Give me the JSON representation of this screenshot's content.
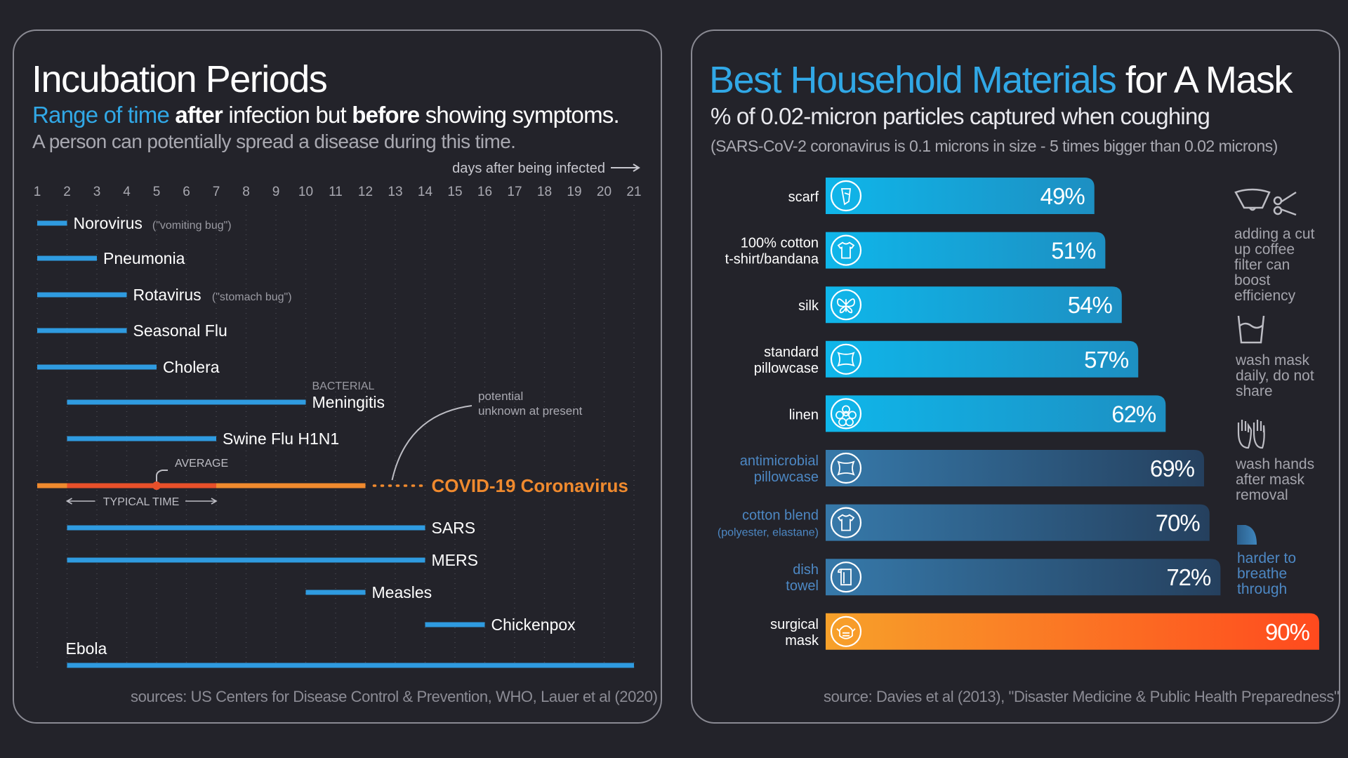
{
  "incubation": {
    "title": "Incubation Periods",
    "subtitle_blue": "Range of time",
    "subtitle_after": "after",
    "subtitle_mid": "infection but",
    "subtitle_before": "before",
    "subtitle_end": "showing symptoms.",
    "subtitle2": "A person can potentially spread a disease during this time.",
    "axis_label": "days after being infected",
    "source": "sources: US Centers for Disease Control & Prevention, WHO, Lauer et al (2020)",
    "annotations": {
      "bacterial": "BACTERIAL",
      "potential": "potential",
      "unknown": "unknown at present",
      "average": "AVERAGE",
      "typical": "TYPICAL TIME"
    },
    "colors": {
      "bar": "#2f9be0",
      "covid_dark": "#e8502a",
      "covid_light": "#f08a2e"
    }
  },
  "masks": {
    "title_blue": "Best Household Materials",
    "title_white": "for A Mask",
    "subtitle": "% of 0.02-micron particles captured when coughing",
    "note": "(SARS-CoV-2 coronavirus is 0.1 microns in size - 5 times bigger than 0.02 microns)",
    "source": "source: Davies et al (2013), \"Disaster Medicine & Public Health Preparedness\"",
    "tips": [
      {
        "icon": "coffee-filter-scissors-icon",
        "text": "adding a cut up coffee filter can boost efficiency"
      },
      {
        "icon": "washbasin-icon",
        "text": "wash mask daily, do not share"
      },
      {
        "icon": "hands-icon",
        "text": "wash hands after mask removal"
      },
      {
        "icon": "breathing-gradient-icon",
        "text": "harder to breathe through"
      }
    ],
    "colors": {
      "light": "#17b3e6",
      "dark": "#2f6f9f",
      "surgical_start": "#f7a12a",
      "surgical_end": "#ff4a1e"
    }
  },
  "chart_data": [
    {
      "type": "bar",
      "orientation": "horizontal-range",
      "title": "Incubation Periods",
      "xlabel": "days after being infected",
      "xticks": [
        "1",
        "2",
        "3",
        "4",
        "5",
        "6",
        "7",
        "8",
        "9",
        "10",
        "11",
        "12",
        "13",
        "14",
        "15",
        "16",
        "17",
        "18",
        "19",
        "20",
        "21"
      ],
      "xlim": [
        1,
        21
      ],
      "series": [
        {
          "name": "Norovirus",
          "note": "(\"vomiting bug\")",
          "start": 1,
          "end": 2
        },
        {
          "name": "Pneumonia",
          "start": 1,
          "end": 3
        },
        {
          "name": "Rotavirus",
          "note": "(\"stomach bug\")",
          "start": 1,
          "end": 4
        },
        {
          "name": "Seasonal Flu",
          "start": 1,
          "end": 4
        },
        {
          "name": "Cholera",
          "start": 1,
          "end": 5
        },
        {
          "name": "Meningitis",
          "start": 2,
          "end": 10
        },
        {
          "name": "Swine Flu H1N1",
          "start": 2,
          "end": 7
        },
        {
          "name": "COVID-19 Coronavirus",
          "start": 1,
          "end": 14,
          "typical_start": 2,
          "typical_end": 7,
          "average": 5,
          "confirmed_end": 12
        },
        {
          "name": "SARS",
          "start": 2,
          "end": 14
        },
        {
          "name": "MERS",
          "start": 2,
          "end": 14
        },
        {
          "name": "Measles",
          "start": 10,
          "end": 12
        },
        {
          "name": "Chickenpox",
          "start": 14,
          "end": 16
        },
        {
          "name": "Ebola",
          "start": 2,
          "end": 21
        }
      ]
    },
    {
      "type": "bar",
      "orientation": "horizontal",
      "title": "Best Household Materials for A Mask",
      "xlabel": "% of 0.02-micron particles captured when coughing",
      "xlim": [
        0,
        100
      ],
      "categories": [
        {
          "line1": "scarf",
          "line2": "",
          "style": "light",
          "icon": "scarf-icon"
        },
        {
          "line1": "100% cotton",
          "line2": "t-shirt/bandana",
          "style": "light",
          "icon": "tshirt-icon"
        },
        {
          "line1": "silk",
          "line2": "",
          "style": "light",
          "icon": "butterfly-icon"
        },
        {
          "line1": "standard",
          "line2": "pillowcase",
          "style": "light",
          "icon": "pillow-icon"
        },
        {
          "line1": "linen",
          "line2": "",
          "style": "light",
          "icon": "flower-icon"
        },
        {
          "line1": "antimicrobial",
          "line2": "pillowcase",
          "style": "dark",
          "icon": "pillow-icon"
        },
        {
          "line1": "cotton blend",
          "line2": "(polyester, elastane)",
          "style": "dark",
          "icon": "tshirt-icon"
        },
        {
          "line1": "dish",
          "line2": "towel",
          "style": "dark",
          "icon": "towel-icon"
        },
        {
          "line1": "surgical",
          "line2": "mask",
          "style": "surgical",
          "icon": "mask-face-icon"
        }
      ],
      "values": [
        49,
        51,
        54,
        57,
        62,
        69,
        70,
        72,
        90
      ],
      "labels": [
        "49%",
        "51%",
        "54%",
        "57%",
        "62%",
        "69%",
        "70%",
        "72%",
        "90%"
      ]
    }
  ]
}
